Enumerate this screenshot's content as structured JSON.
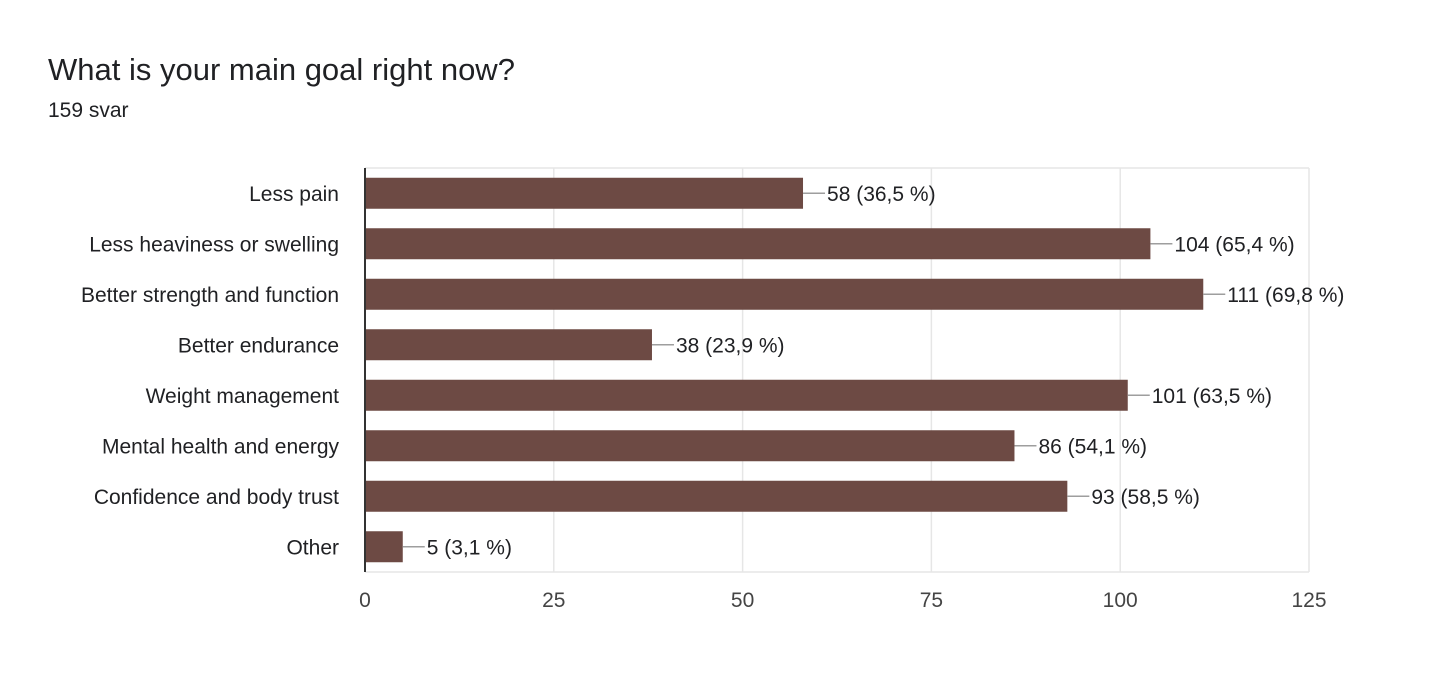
{
  "question": {
    "title": "What is your main goal right now?",
    "response_count": "159 svar"
  },
  "colors": {
    "bar": "#6d4a44",
    "grid": "#e6e6e6",
    "axis": "#333333",
    "leader": "#9e9e9e"
  },
  "chart_data": {
    "type": "bar",
    "orientation": "horizontal",
    "categories": [
      "Less pain",
      "Less heaviness or swelling",
      "Better strength and function",
      "Better endurance",
      "Weight management",
      "Mental health and energy",
      "Confidence and body trust",
      "Other"
    ],
    "values": [
      58,
      104,
      111,
      38,
      101,
      86,
      93,
      5
    ],
    "data_labels": [
      "58 (36,5 %)",
      "104 (65,4 %)",
      "111 (69,8 %)",
      "38 (23,9 %)",
      "101 (63,5 %)",
      "86 (54,1 %)",
      "93 (58,5 %)",
      "5 (3,1 %)"
    ],
    "xlim": [
      0,
      125
    ],
    "xticks": [
      0,
      25,
      50,
      75,
      100,
      125
    ],
    "grid": true
  }
}
